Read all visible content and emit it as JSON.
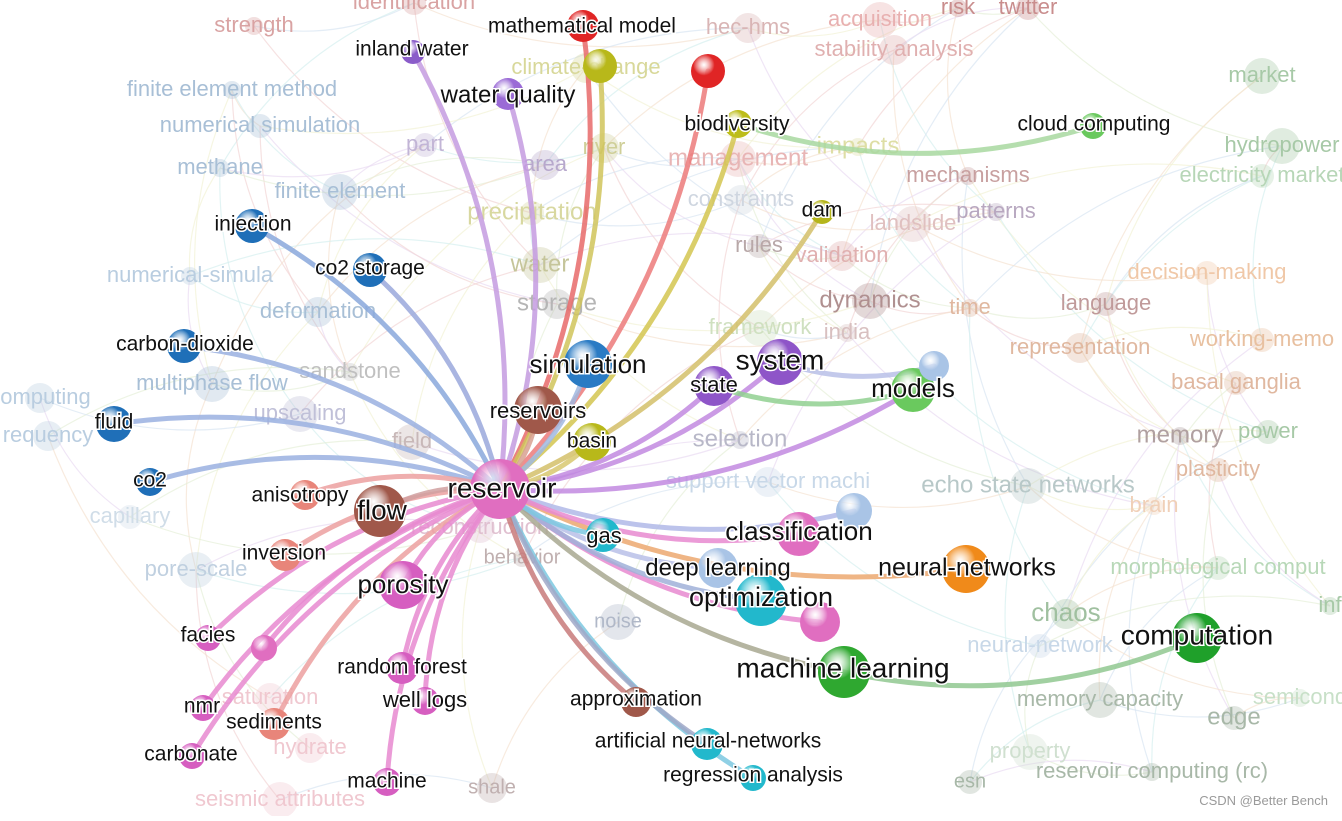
{
  "network": {
    "background_labels": [
      {
        "id": "strength",
        "text": "strength",
        "color": "#d9a3a3"
      },
      {
        "id": "identification",
        "text": "identification",
        "color": "#d9a3a3"
      },
      {
        "id": "hec-hms",
        "text": "hec-hms",
        "color": "#d9b5b5"
      },
      {
        "id": "acquisition",
        "text": "acquisition",
        "color": "#e8b0b0"
      },
      {
        "id": "risk",
        "text": "risk",
        "color": "#c98d8d"
      },
      {
        "id": "twitter",
        "text": "twitter",
        "color": "#c98d8d"
      },
      {
        "id": "stability-analysis",
        "text": "stability analysis",
        "color": "#e0b0b0"
      },
      {
        "id": "market",
        "text": "market",
        "color": "#a7c9a7"
      },
      {
        "id": "finite-element-method",
        "text": "finite element method",
        "color": "#a8bfd6"
      },
      {
        "id": "numerical-simulation",
        "text": "numerical simulation",
        "color": "#a8bfd6"
      },
      {
        "id": "climate-change",
        "text": "climate-change",
        "color": "#d8d89a"
      },
      {
        "id": "hydropower",
        "text": "hydropower",
        "color": "#a7c9a7"
      },
      {
        "id": "methane",
        "text": "methane",
        "color": "#a8bfd6"
      },
      {
        "id": "part",
        "text": "part",
        "color": "#c2b5d6"
      },
      {
        "id": "river",
        "text": "river",
        "color": "#cfcf98"
      },
      {
        "id": "management",
        "text": "management",
        "color": "#e8b5b5"
      },
      {
        "id": "impacts",
        "text": "impacts",
        "color": "#dedea5"
      },
      {
        "id": "electricity-market",
        "text": "electricity market",
        "color": "#b7d6b7"
      },
      {
        "id": "area",
        "text": "area",
        "color": "#b7a8cc"
      },
      {
        "id": "finite-element",
        "text": "finite element",
        "color": "#a8bfd6"
      },
      {
        "id": "mechanisms",
        "text": "mechanisms",
        "color": "#c8a0a0"
      },
      {
        "id": "precipitation",
        "text": "precipitation",
        "color": "#d8d8a0"
      },
      {
        "id": "constraints",
        "text": "constraints",
        "color": "#cfd6e0"
      },
      {
        "id": "landslide",
        "text": "landslide",
        "color": "#e0c0c0"
      },
      {
        "id": "patterns",
        "text": "patterns",
        "color": "#b8a8c0"
      },
      {
        "id": "rules",
        "text": "rules",
        "color": "#b8a8a8"
      },
      {
        "id": "validation",
        "text": "validation",
        "color": "#e0b0b0"
      },
      {
        "id": "water",
        "text": "water",
        "color": "#c5c59a"
      },
      {
        "id": "numerical-simulation-2",
        "text": "numerical-simula",
        "color": "#b9cde0"
      },
      {
        "id": "decision-making",
        "text": "decision-making",
        "color": "#f0c8a8"
      },
      {
        "id": "storage",
        "text": "storage",
        "color": "#b5b5b5"
      },
      {
        "id": "dynamics",
        "text": "dynamics",
        "color": "#b09090"
      },
      {
        "id": "time",
        "text": "time",
        "color": "#e0b8a0"
      },
      {
        "id": "language",
        "text": "language",
        "color": "#c09a9a"
      },
      {
        "id": "deformation",
        "text": "deformation",
        "color": "#a8bfd6"
      },
      {
        "id": "framework",
        "text": "framework",
        "color": "#cfe0c0"
      },
      {
        "id": "india",
        "text": "india",
        "color": "#d8c0c0"
      },
      {
        "id": "working-memory",
        "text": "working-memo",
        "color": "#e8c0a0"
      },
      {
        "id": "representation",
        "text": "representation",
        "color": "#e0b8a0"
      },
      {
        "id": "multiphase-flow",
        "text": "multiphase flow",
        "color": "#a8bfd6"
      },
      {
        "id": "sandstone",
        "text": "sandstone",
        "color": "#c0c0c0"
      },
      {
        "id": "basal-ganglia",
        "text": "basal ganglia",
        "color": "#e0b8a0"
      },
      {
        "id": "computing",
        "text": "computing",
        "color": "#b9cde0"
      },
      {
        "id": "upscaling",
        "text": "upscaling",
        "color": "#c0c0d8"
      },
      {
        "id": "memory",
        "text": "memory",
        "color": "#b0a0a0"
      },
      {
        "id": "power",
        "text": "power",
        "color": "#a7c9a7"
      },
      {
        "id": "frequency",
        "text": "requency",
        "color": "#b9cde0"
      },
      {
        "id": "field",
        "text": "field",
        "color": "#c8b8b8"
      },
      {
        "id": "selection",
        "text": "selection",
        "color": "#b8b8c8"
      },
      {
        "id": "plasticity",
        "text": "plasticity",
        "color": "#e0b8a0"
      },
      {
        "id": "support-vector-machine",
        "text": "support vector machi",
        "color": "#c8d8e8"
      },
      {
        "id": "echo-state-networks",
        "text": "echo state networks",
        "color": "#b8c8c8"
      },
      {
        "id": "brain",
        "text": "brain",
        "color": "#f0d0b8"
      },
      {
        "id": "capillary",
        "text": "capillary",
        "color": "#d0dde8"
      },
      {
        "id": "reconstruction",
        "text": "reconstruction",
        "color": "#e0c0d0"
      },
      {
        "id": "pore-scale",
        "text": "pore-scale",
        "color": "#c0d0e0"
      },
      {
        "id": "behavior",
        "text": "behavior",
        "color": "#c0b0b0"
      },
      {
        "id": "morphological-computation",
        "text": "morphological comput",
        "color": "#b8d8b8"
      },
      {
        "id": "chaos",
        "text": "chaos",
        "color": "#a0c0a0"
      },
      {
        "id": "noise",
        "text": "noise",
        "color": "#b0b8c8"
      },
      {
        "id": "information",
        "text": "inf",
        "color": "#a7c9a7"
      },
      {
        "id": "neural-network",
        "text": "neural-network",
        "color": "#c8d8e8"
      },
      {
        "id": "saturation",
        "text": "saturation",
        "color": "#f0c8d0"
      },
      {
        "id": "memory-capacity",
        "text": "memory capacity",
        "color": "#a8b8a8"
      },
      {
        "id": "semiconductor",
        "text": "semicond",
        "color": "#c8e0c8"
      },
      {
        "id": "edge",
        "text": "edge",
        "color": "#a8b8a8"
      },
      {
        "id": "hydrate",
        "text": "hydrate",
        "color": "#f0c8d0"
      },
      {
        "id": "property",
        "text": "property",
        "color": "#d0e0d0"
      },
      {
        "id": "reservoir-computing-rc",
        "text": "reservoir computing (rc)",
        "color": "#a8b8a8"
      },
      {
        "id": "esn",
        "text": "esn",
        "color": "#a8b8a8"
      },
      {
        "id": "shale",
        "text": "shale",
        "color": "#c0b0b0"
      },
      {
        "id": "seismic-attributes",
        "text": "seismic attributes",
        "color": "#f0c8d0"
      }
    ],
    "nodes": [
      {
        "id": "mathematical-model",
        "label": "mathematical model",
        "color": "#e02525"
      },
      {
        "id": "inland-water",
        "label": "inland water",
        "color": "#8a5cc9"
      },
      {
        "id": "water-quality",
        "label": "water quality",
        "color": "#9b6bd6"
      },
      {
        "id": "climate-change-node",
        "label": "",
        "color": "#b8b81a"
      },
      {
        "id": "red-hub",
        "label": "",
        "color": "#e02525"
      },
      {
        "id": "biodiversity",
        "label": "biodiversity",
        "color": "#bdbd1a"
      },
      {
        "id": "cloud-computing",
        "label": "cloud computing",
        "color": "#6ac95e"
      },
      {
        "id": "injection",
        "label": "injection",
        "color": "#1f6fb8"
      },
      {
        "id": "dam",
        "label": "dam",
        "color": "#b5b51a"
      },
      {
        "id": "co2-storage",
        "label": "co2 storage",
        "color": "#1f6fb8"
      },
      {
        "id": "carbon-dioxide",
        "label": "carbon-dioxide",
        "color": "#1f6fb8"
      },
      {
        "id": "simulation",
        "label": "simulation",
        "color": "#2a7bc4"
      },
      {
        "id": "system",
        "label": "system",
        "color": "#8e55c8"
      },
      {
        "id": "models",
        "label": "models",
        "color": "#6ac95e"
      },
      {
        "id": "models-blue",
        "label": "",
        "color": "#a9c4e6"
      },
      {
        "id": "state",
        "label": "state",
        "color": "#8e55c8"
      },
      {
        "id": "reservoirs",
        "label": "reservoirs",
        "color": "#a0584a"
      },
      {
        "id": "fluid",
        "label": "fluid",
        "color": "#1f6fb8"
      },
      {
        "id": "basin",
        "label": "basin",
        "color": "#b8b81a"
      },
      {
        "id": "co2",
        "label": "co2",
        "color": "#1f6fb8"
      },
      {
        "id": "reservoir",
        "label": "reservoir",
        "color": "#e06ec0"
      },
      {
        "id": "anisotropy",
        "label": "anisotropy",
        "color": "#e8857a"
      },
      {
        "id": "flow",
        "label": "flow",
        "color": "#a0584a"
      },
      {
        "id": "svm-node",
        "label": "",
        "color": "#a9c4e6"
      },
      {
        "id": "gas",
        "label": "gas",
        "color": "#22b8cc"
      },
      {
        "id": "classification",
        "label": "classification",
        "color": "#e06ec0"
      },
      {
        "id": "inversion",
        "label": "inversion",
        "color": "#e8857a"
      },
      {
        "id": "neural-networks",
        "label": "neural-networks",
        "color": "#f08a1a"
      },
      {
        "id": "deep-learning",
        "label": "deep learning",
        "color": "#a9c4e6"
      },
      {
        "id": "porosity",
        "label": "porosity",
        "color": "#d65ec0"
      },
      {
        "id": "optimization",
        "label": "optimization",
        "color": "#22b8cc"
      },
      {
        "id": "optimization-pink",
        "label": "",
        "color": "#e06ec0"
      },
      {
        "id": "computation",
        "label": "computation",
        "color": "#1fa02a"
      },
      {
        "id": "facies",
        "label": "facies",
        "color": "#d65ec0"
      },
      {
        "id": "facies-2",
        "label": "",
        "color": "#e06ec0"
      },
      {
        "id": "random-forest",
        "label": "random forest",
        "color": "#d65ec0"
      },
      {
        "id": "machine-learning",
        "label": "machine learning",
        "color": "#2fa830"
      },
      {
        "id": "nmr",
        "label": "nmr",
        "color": "#d65ec0"
      },
      {
        "id": "well-logs",
        "label": "well logs",
        "color": "#d65ec0"
      },
      {
        "id": "approximation",
        "label": "approximation",
        "color": "#a0584a"
      },
      {
        "id": "sediments",
        "label": "sediments",
        "color": "#e8857a"
      },
      {
        "id": "ann",
        "label": "artificial neural-networks",
        "color": "#22b8cc"
      },
      {
        "id": "carbonate",
        "label": "carbonate",
        "color": "#d65ec0"
      },
      {
        "id": "regression-analysis",
        "label": "regression analysis",
        "color": "#22b8cc"
      },
      {
        "id": "machine",
        "label": "machine",
        "color": "#d65ec0"
      }
    ],
    "edges": [
      {
        "from": "reservoir",
        "to": "mathematical-model",
        "color": "#e86a6a"
      },
      {
        "from": "reservoir",
        "to": "inland-water",
        "color": "#c49be0"
      },
      {
        "from": "reservoir",
        "to": "water-quality",
        "color": "#c49be0"
      },
      {
        "from": "reservoir",
        "to": "climate-change-node",
        "color": "#d0c45a"
      },
      {
        "from": "reservoir",
        "to": "red-hub",
        "color": "#ec7a7a"
      },
      {
        "from": "reservoir",
        "to": "dam",
        "color": "#d4c06a"
      },
      {
        "from": "reservoir",
        "to": "biodiversity",
        "color": "#d4c650"
      },
      {
        "from": "reservoir",
        "to": "injection",
        "color": "#8aa8dc"
      },
      {
        "from": "reservoir",
        "to": "co2-storage",
        "color": "#9aa8dc"
      },
      {
        "from": "reservoir",
        "to": "carbon-dioxide",
        "color": "#9ab0e0"
      },
      {
        "from": "reservoir",
        "to": "fluid",
        "color": "#9ab0e0"
      },
      {
        "from": "reservoir",
        "to": "co2",
        "color": "#9ab0e0"
      },
      {
        "from": "reservoir",
        "to": "system",
        "color": "#c28ae0"
      },
      {
        "from": "reservoir",
        "to": "models",
        "color": "#c28ae0"
      },
      {
        "from": "reservoir",
        "to": "state",
        "color": "#c28ae0"
      },
      {
        "from": "reservoir",
        "to": "neural-networks",
        "color": "#eca870"
      },
      {
        "from": "reservoir",
        "to": "svm-node",
        "color": "#b0b8e8"
      },
      {
        "from": "reservoir",
        "to": "classification",
        "color": "#e88ad0"
      },
      {
        "from": "reservoir",
        "to": "deep-learning",
        "color": "#b8c0e8"
      },
      {
        "from": "reservoir",
        "to": "optimization-pink",
        "color": "#e88ad0"
      },
      {
        "from": "reservoir",
        "to": "optimization",
        "color": "#a0b0d8"
      },
      {
        "from": "reservoir",
        "to": "machine-learning",
        "color": "#a8a890"
      },
      {
        "from": "reservoir",
        "to": "regression-analysis",
        "color": "#7cc8e0"
      },
      {
        "from": "reservoir",
        "to": "ann",
        "color": "#a0a8c8"
      },
      {
        "from": "reservoir",
        "to": "approximation",
        "color": "#c87a7a"
      },
      {
        "from": "reservoir",
        "to": "machine",
        "color": "#e88ad0"
      },
      {
        "from": "reservoir",
        "to": "well-logs",
        "color": "#e88ad0"
      },
      {
        "from": "reservoir",
        "to": "random-forest",
        "color": "#e88ad0"
      },
      {
        "from": "reservoir",
        "to": "carbonate",
        "color": "#e88ad0"
      },
      {
        "from": "reservoir",
        "to": "nmr",
        "color": "#e88ad0"
      },
      {
        "from": "reservoir",
        "to": "facies",
        "color": "#e88ad0"
      },
      {
        "from": "reservoir",
        "to": "facies-2",
        "color": "#e88ad0"
      },
      {
        "from": "reservoir",
        "to": "sediments",
        "color": "#eca0a0"
      },
      {
        "from": "reservoir",
        "to": "inversion",
        "color": "#eca0a0"
      },
      {
        "from": "reservoir",
        "to": "anisotropy",
        "color": "#eca0a0"
      },
      {
        "from": "reservoir",
        "to": "flow",
        "color": "#d0a0a0"
      },
      {
        "from": "reservoir",
        "to": "porosity",
        "color": "#e88ad0"
      },
      {
        "from": "reservoir",
        "to": "basin",
        "color": "#d8c870"
      },
      {
        "from": "reservoir",
        "to": "gas",
        "color": "#7cc8e0"
      },
      {
        "from": "reservoir",
        "to": "reservoirs",
        "color": "#d8a090"
      },
      {
        "from": "reservoir",
        "to": "simulation",
        "color": "#a0b8e0"
      },
      {
        "from": "machine-learning",
        "to": "computation",
        "color": "#90c890"
      },
      {
        "from": "system",
        "to": "models-blue",
        "color": "#b8c0e8"
      },
      {
        "from": "state",
        "to": "models",
        "color": "#90d090"
      },
      {
        "from": "biodiversity",
        "to": "cloud-computing",
        "color": "#a8d8a0"
      }
    ]
  },
  "watermark": "CSDN @Better Bench"
}
